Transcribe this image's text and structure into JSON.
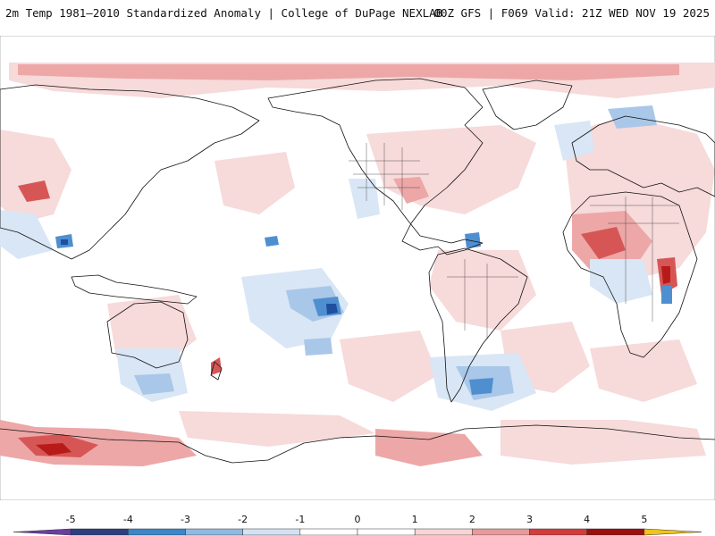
{
  "header": {
    "left_title": "2m Temp 1981–2010 Standardized Anomaly | College of DuPage NEXLAB",
    "right_title": "00Z GFS | F069 Valid: 21Z WED NOV 19 2025"
  },
  "colors": {
    "ocean": "#ffffff",
    "warm_light": "#f7dada",
    "warm_mid": "#eda7a7",
    "warm_strong": "#d65656",
    "warm_deep": "#b81a1a",
    "cool_light": "#d9e6f5",
    "cool_mid": "#a9c7e8",
    "cool_strong": "#4f8fd0",
    "cool_deep": "#1f4f9e",
    "coast": "#111111"
  },
  "colorbar": {
    "min": -6,
    "max": 6,
    "tick_labels": [
      "-5",
      "-4",
      "-3",
      "-2",
      "-1",
      "0",
      "1",
      "2",
      "3",
      "4",
      "5"
    ],
    "tick_values": [
      -5,
      -4,
      -3,
      -2,
      -1,
      0,
      1,
      2,
      3,
      4,
      5
    ],
    "bins": [
      {
        "from": -6,
        "to": -5,
        "color": "#6a3fa0"
      },
      {
        "from": -5,
        "to": -4,
        "color": "#2c3f7f"
      },
      {
        "from": -4,
        "to": -3,
        "color": "#3a86c8"
      },
      {
        "from": -3,
        "to": -2,
        "color": "#8fb9e3"
      },
      {
        "from": -2,
        "to": -1,
        "color": "#d3e2f3"
      },
      {
        "from": -1,
        "to": 0,
        "color": "#ffffff"
      },
      {
        "from": 0,
        "to": 1,
        "color": "#ffffff"
      },
      {
        "from": 1,
        "to": 2,
        "color": "#f6d5d5"
      },
      {
        "from": 2,
        "to": 3,
        "color": "#e89a9a"
      },
      {
        "from": 3,
        "to": 4,
        "color": "#d43c3c"
      },
      {
        "from": 4,
        "to": 5,
        "color": "#9c0f0f"
      },
      {
        "from": 5,
        "to": 6,
        "color": "#f0c419"
      }
    ]
  }
}
